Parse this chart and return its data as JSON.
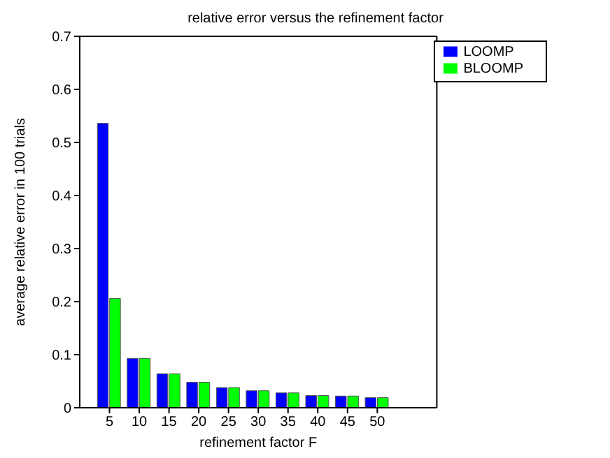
{
  "chart_data": {
    "type": "bar",
    "title": "relative error versus the refinement factor",
    "xlabel": "refinement factor F",
    "ylabel": "average relative error in 100 trials",
    "x": [
      5,
      10,
      15,
      20,
      25,
      30,
      35,
      40,
      45,
      50
    ],
    "series": [
      {
        "name": "LOOMP",
        "color": "#0000ff",
        "values": [
          0.536,
          0.093,
          0.064,
          0.048,
          0.038,
          0.032,
          0.028,
          0.023,
          0.022,
          0.019
        ]
      },
      {
        "name": "BLOOMP",
        "color": "#00ff00",
        "values": [
          0.206,
          0.093,
          0.064,
          0.048,
          0.038,
          0.032,
          0.028,
          0.023,
          0.022,
          0.019
        ]
      }
    ],
    "xlim": [
      0,
      60
    ],
    "xticks": [
      5,
      10,
      15,
      20,
      25,
      30,
      35,
      40,
      45,
      50
    ],
    "ylim": [
      0,
      0.7
    ],
    "yticks": [
      0,
      0.1,
      0.2,
      0.3,
      0.4,
      0.5,
      0.6,
      0.7
    ],
    "grid": false,
    "legend": "top right"
  }
}
